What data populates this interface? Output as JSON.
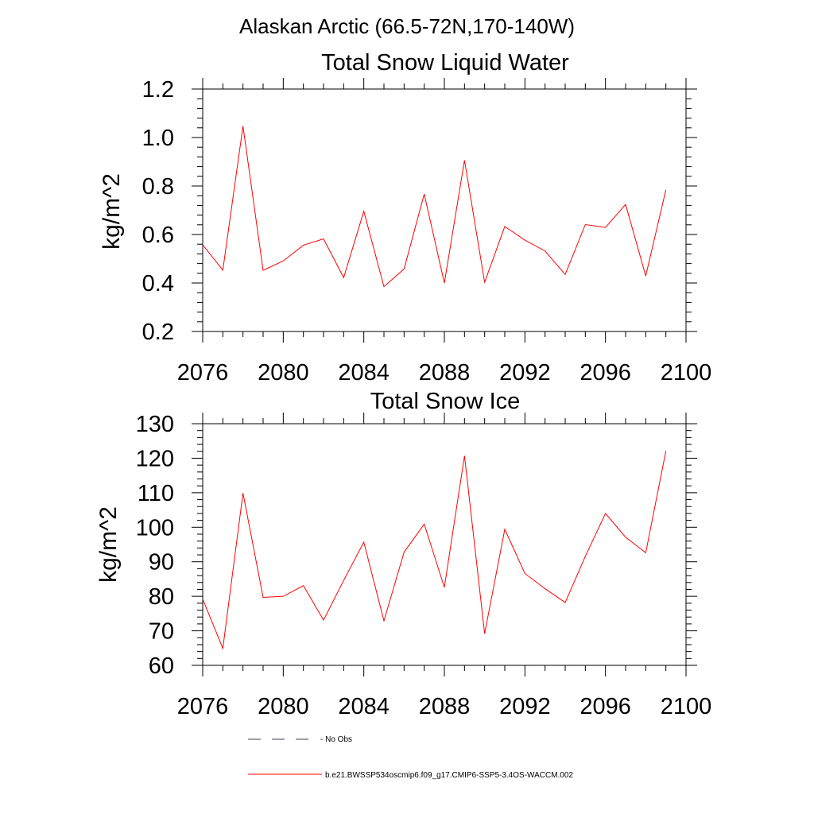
{
  "title": "Alaskan Arctic (66.5-72N,170-140W)",
  "chart_data": [
    {
      "type": "line",
      "title": "Total Snow Liquid Water",
      "xlabel": "",
      "ylabel": "kg/m^2",
      "xlim": [
        2076,
        2100
      ],
      "ylim": [
        0.2,
        1.2
      ],
      "xticks": [
        "2076",
        "2080",
        "2084",
        "2088",
        "2092",
        "2096",
        "2100"
      ],
      "yticks": [
        "0.2",
        "0.4",
        "0.6",
        "0.8",
        "1.0",
        "1.2"
      ],
      "x": [
        2076,
        2077,
        2078,
        2079,
        2080,
        2081,
        2082,
        2083,
        2084,
        2085,
        2086,
        2087,
        2088,
        2089,
        2090,
        2091,
        2092,
        2093,
        2094,
        2095,
        2096,
        2097,
        2098,
        2099
      ],
      "series": [
        {
          "name": "b.e21.BWSSP534oscmip6.f09_g17.CMIP6-SSP5-3.4OS-WACCM.002",
          "color": "#ff0000",
          "values": [
            0.557,
            0.453,
            1.047,
            0.452,
            0.491,
            0.556,
            0.582,
            0.422,
            0.696,
            0.385,
            0.458,
            0.767,
            0.4,
            0.906,
            0.403,
            0.633,
            0.577,
            0.532,
            0.435,
            0.641,
            0.629,
            0.724,
            0.429,
            0.784
          ]
        }
      ]
    },
    {
      "type": "line",
      "title": "Total Snow Ice",
      "xlabel": "",
      "ylabel": "kg/m^2",
      "xlim": [
        2076,
        2100
      ],
      "ylim": [
        60,
        130
      ],
      "xticks": [
        "2076",
        "2080",
        "2084",
        "2088",
        "2092",
        "2096",
        "2100"
      ],
      "yticks": [
        "60",
        "70",
        "80",
        "90",
        "100",
        "110",
        "120",
        "130"
      ],
      "x": [
        2076,
        2077,
        2078,
        2079,
        2080,
        2081,
        2082,
        2083,
        2084,
        2085,
        2086,
        2087,
        2088,
        2089,
        2090,
        2091,
        2092,
        2093,
        2094,
        2095,
        2096,
        2097,
        2098,
        2099
      ],
      "series": [
        {
          "name": "b.e21.BWSSP534oscmip6.f09_g17.CMIP6-SSP5-3.4OS-WACCM.002",
          "color": "#ff0000",
          "values": [
            79.2,
            64.9,
            109.9,
            79.7,
            80.0,
            83.1,
            73.1,
            84.6,
            95.7,
            72.9,
            92.8,
            100.9,
            82.6,
            120.7,
            69.2,
            99.4,
            86.6,
            82.2,
            78.2,
            91.6,
            104.0,
            97.1,
            92.6,
            122.1
          ]
        }
      ]
    }
  ],
  "legend": [
    {
      "label": "- No Obs",
      "style": "dashed",
      "color": "#3a3a60"
    },
    {
      "label": "b.e21.BWSSP534oscmip6.f09_g17.CMIP6-SSP5-3.4OS-WACCM.002",
      "style": "solid",
      "color": "#ff0000"
    }
  ]
}
